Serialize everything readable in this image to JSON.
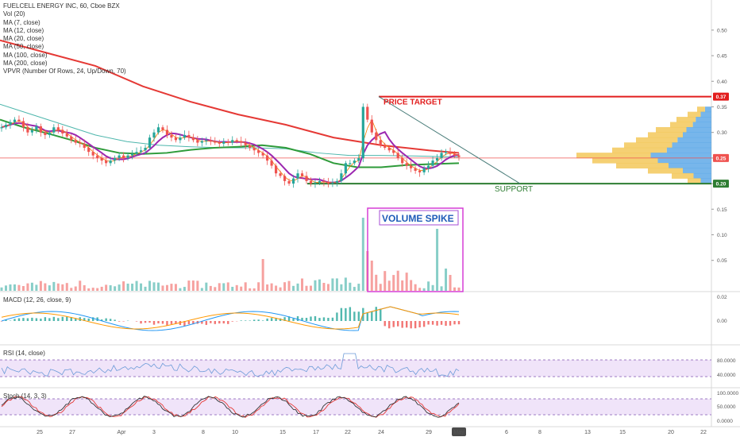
{
  "header": {
    "symbol": "FUELCELL ENERGY INC, 60, Cboe BZX",
    "indicators": [
      "Vol (20)",
      "MA (7, close)",
      "MA (12, close)",
      "MA (20, close)",
      "MA (50, close)",
      "MA (100, close)",
      "MA (200, close)",
      "VPVR (Number Of Rows, 24, Up/Down, 70)"
    ]
  },
  "panes": {
    "macd": "MACD (12, 26, close, 9)",
    "rsi": "RSI (14, close)",
    "stoch": "Stoch (14, 3, 3)"
  },
  "annotations": {
    "price_target": "PRICE TARGET",
    "support": "SUPPORT",
    "volume_spike": "VOLUME SPIKE"
  },
  "colors": {
    "up": "#26a69a",
    "down": "#ef5350",
    "ma_red": "#e53935",
    "ma_green": "#2e9b3a",
    "ma_purple": "#9c27b0",
    "ma_teal": "#4db6ac",
    "annot_red": "#e21d1d",
    "annot_green": "#2e7d32",
    "annot_magenta": "#d63fd6",
    "rsi_band": "#e9d9f7",
    "vpvr_up": "#5fa9e8",
    "vpvr_down": "#f3c85a"
  },
  "chart_data": {
    "type": "candlestick",
    "price_axis": {
      "ticks": [
        "0.50",
        "0.45",
        "0.40",
        "0.35",
        "0.30",
        "0.25",
        "0.20",
        "0.15",
        "0.10",
        "0.05"
      ],
      "range": [
        0.02,
        0.52
      ]
    },
    "price_badges": [
      {
        "label": "0.37",
        "value": 0.37,
        "color": "#e21d1d"
      },
      {
        "label": "0.25",
        "value": 0.25,
        "color": "#ef5350"
      },
      {
        "label": "0.20",
        "value": 0.2,
        "color": "#2e7d32"
      }
    ],
    "x_axis_labels": [
      "25",
      "27",
      "Apr",
      "3",
      "8",
      "10",
      "15",
      "17",
      "22",
      "24",
      "29",
      "May",
      "6",
      "8",
      "13",
      "15",
      "20",
      "22"
    ],
    "highlighted_x_label": "May",
    "levels": {
      "price_target": 0.37,
      "support": 0.2
    },
    "candles": [
      0.31,
      0.315,
      0.32,
      0.325,
      0.322,
      0.31,
      0.3,
      0.305,
      0.312,
      0.3,
      0.295,
      0.3,
      0.31,
      0.305,
      0.298,
      0.292,
      0.285,
      0.28,
      0.278,
      0.27,
      0.262,
      0.255,
      0.25,
      0.245,
      0.24,
      0.245,
      0.25,
      0.255,
      0.25,
      0.255,
      0.258,
      0.262,
      0.265,
      0.27,
      0.29,
      0.3,
      0.31,
      0.305,
      0.295,
      0.29,
      0.285,
      0.29,
      0.295,
      0.29,
      0.285,
      0.28,
      0.283,
      0.285,
      0.282,
      0.28,
      0.278,
      0.282,
      0.28,
      0.285,
      0.283,
      0.28,
      0.275,
      0.27,
      0.265,
      0.26,
      0.255,
      0.245,
      0.235,
      0.22,
      0.215,
      0.205,
      0.2,
      0.21,
      0.22,
      0.215,
      0.205,
      0.2,
      0.202,
      0.205,
      0.203,
      0.2,
      0.202,
      0.205,
      0.22,
      0.24,
      0.24,
      0.245,
      0.25,
      0.35,
      0.325,
      0.3,
      0.285,
      0.275,
      0.27,
      0.265,
      0.26,
      0.25,
      0.24,
      0.235,
      0.23,
      0.225,
      0.222,
      0.23,
      0.235,
      0.245,
      0.25,
      0.26,
      0.262,
      0.258,
      0.255,
      0.252
    ],
    "series": [
      {
        "name": "MA (200, close)",
        "values": [
          [
            0,
            0.48
          ],
          [
            60,
            0.455
          ],
          [
            120,
            0.43
          ],
          [
            180,
            0.39
          ],
          [
            240,
            0.36
          ],
          [
            300,
            0.335
          ],
          [
            360,
            0.315
          ],
          [
            420,
            0.29
          ],
          [
            480,
            0.275
          ],
          [
            540,
            0.265
          ],
          [
            578,
            0.26
          ]
        ]
      },
      {
        "name": "MA (100, close)",
        "values": [
          [
            0,
            0.355
          ],
          [
            40,
            0.335
          ],
          [
            80,
            0.315
          ],
          [
            120,
            0.295
          ],
          [
            160,
            0.282
          ],
          [
            200,
            0.275
          ],
          [
            240,
            0.272
          ],
          [
            280,
            0.27
          ],
          [
            320,
            0.27
          ],
          [
            360,
            0.268
          ],
          [
            400,
            0.26
          ],
          [
            440,
            0.255
          ],
          [
            480,
            0.255
          ],
          [
            520,
            0.254
          ],
          [
            578,
            0.252
          ]
        ]
      },
      {
        "name": "MA (50, close)",
        "values": [
          [
            0,
            0.325
          ],
          [
            30,
            0.31
          ],
          [
            60,
            0.298
          ],
          [
            90,
            0.285
          ],
          [
            120,
            0.27
          ],
          [
            150,
            0.26
          ],
          [
            180,
            0.258
          ],
          [
            210,
            0.26
          ],
          [
            240,
            0.266
          ],
          [
            270,
            0.27
          ],
          [
            300,
            0.272
          ],
          [
            330,
            0.275
          ],
          [
            360,
            0.27
          ],
          [
            390,
            0.258
          ],
          [
            420,
            0.24
          ],
          [
            450,
            0.232
          ],
          [
            480,
            0.232
          ],
          [
            510,
            0.236
          ],
          [
            540,
            0.238
          ],
          [
            578,
            0.24
          ]
        ]
      }
    ],
    "rsi_axis": [
      "80.0000",
      "40.0000"
    ],
    "macd_axis": [
      "0.02",
      "0.00"
    ],
    "stoch_axis": [
      "100.0000",
      "50.0000",
      "0.0000"
    ]
  }
}
